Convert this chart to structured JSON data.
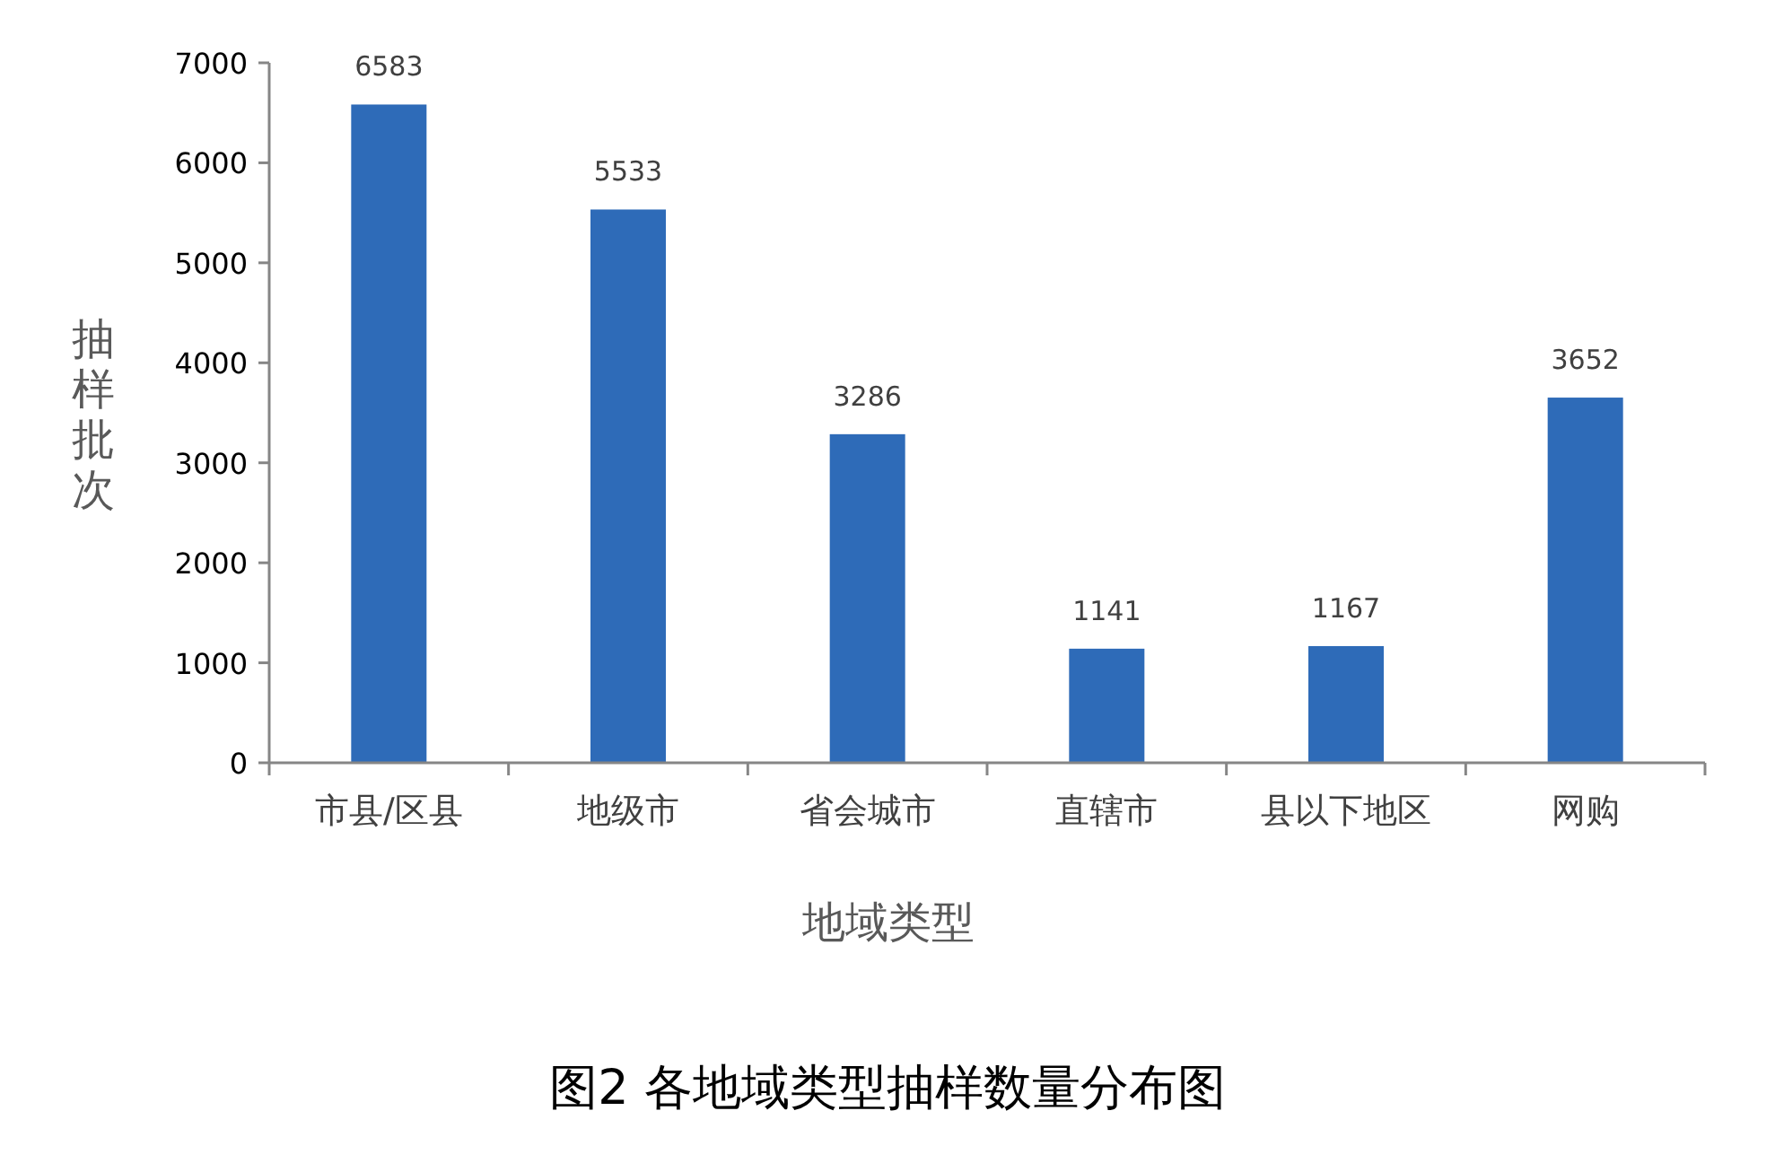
{
  "chart_data": {
    "type": "bar",
    "title": "图2 各地域类型抽样数量分布图",
    "xlabel": "地域类型",
    "ylabel": "抽样批次",
    "categories": [
      "市县/区县",
      "地级市",
      "省会城市",
      "直辖市",
      "县以下地区",
      "网购"
    ],
    "values": [
      6583,
      5533,
      3286,
      1141,
      1167,
      3652
    ],
    "color": "#2e6bb8",
    "ylim": [
      0,
      7000
    ],
    "yticks": [
      0,
      1000,
      2000,
      3000,
      4000,
      5000,
      6000,
      7000
    ],
    "data_labels": true,
    "grid": false
  }
}
